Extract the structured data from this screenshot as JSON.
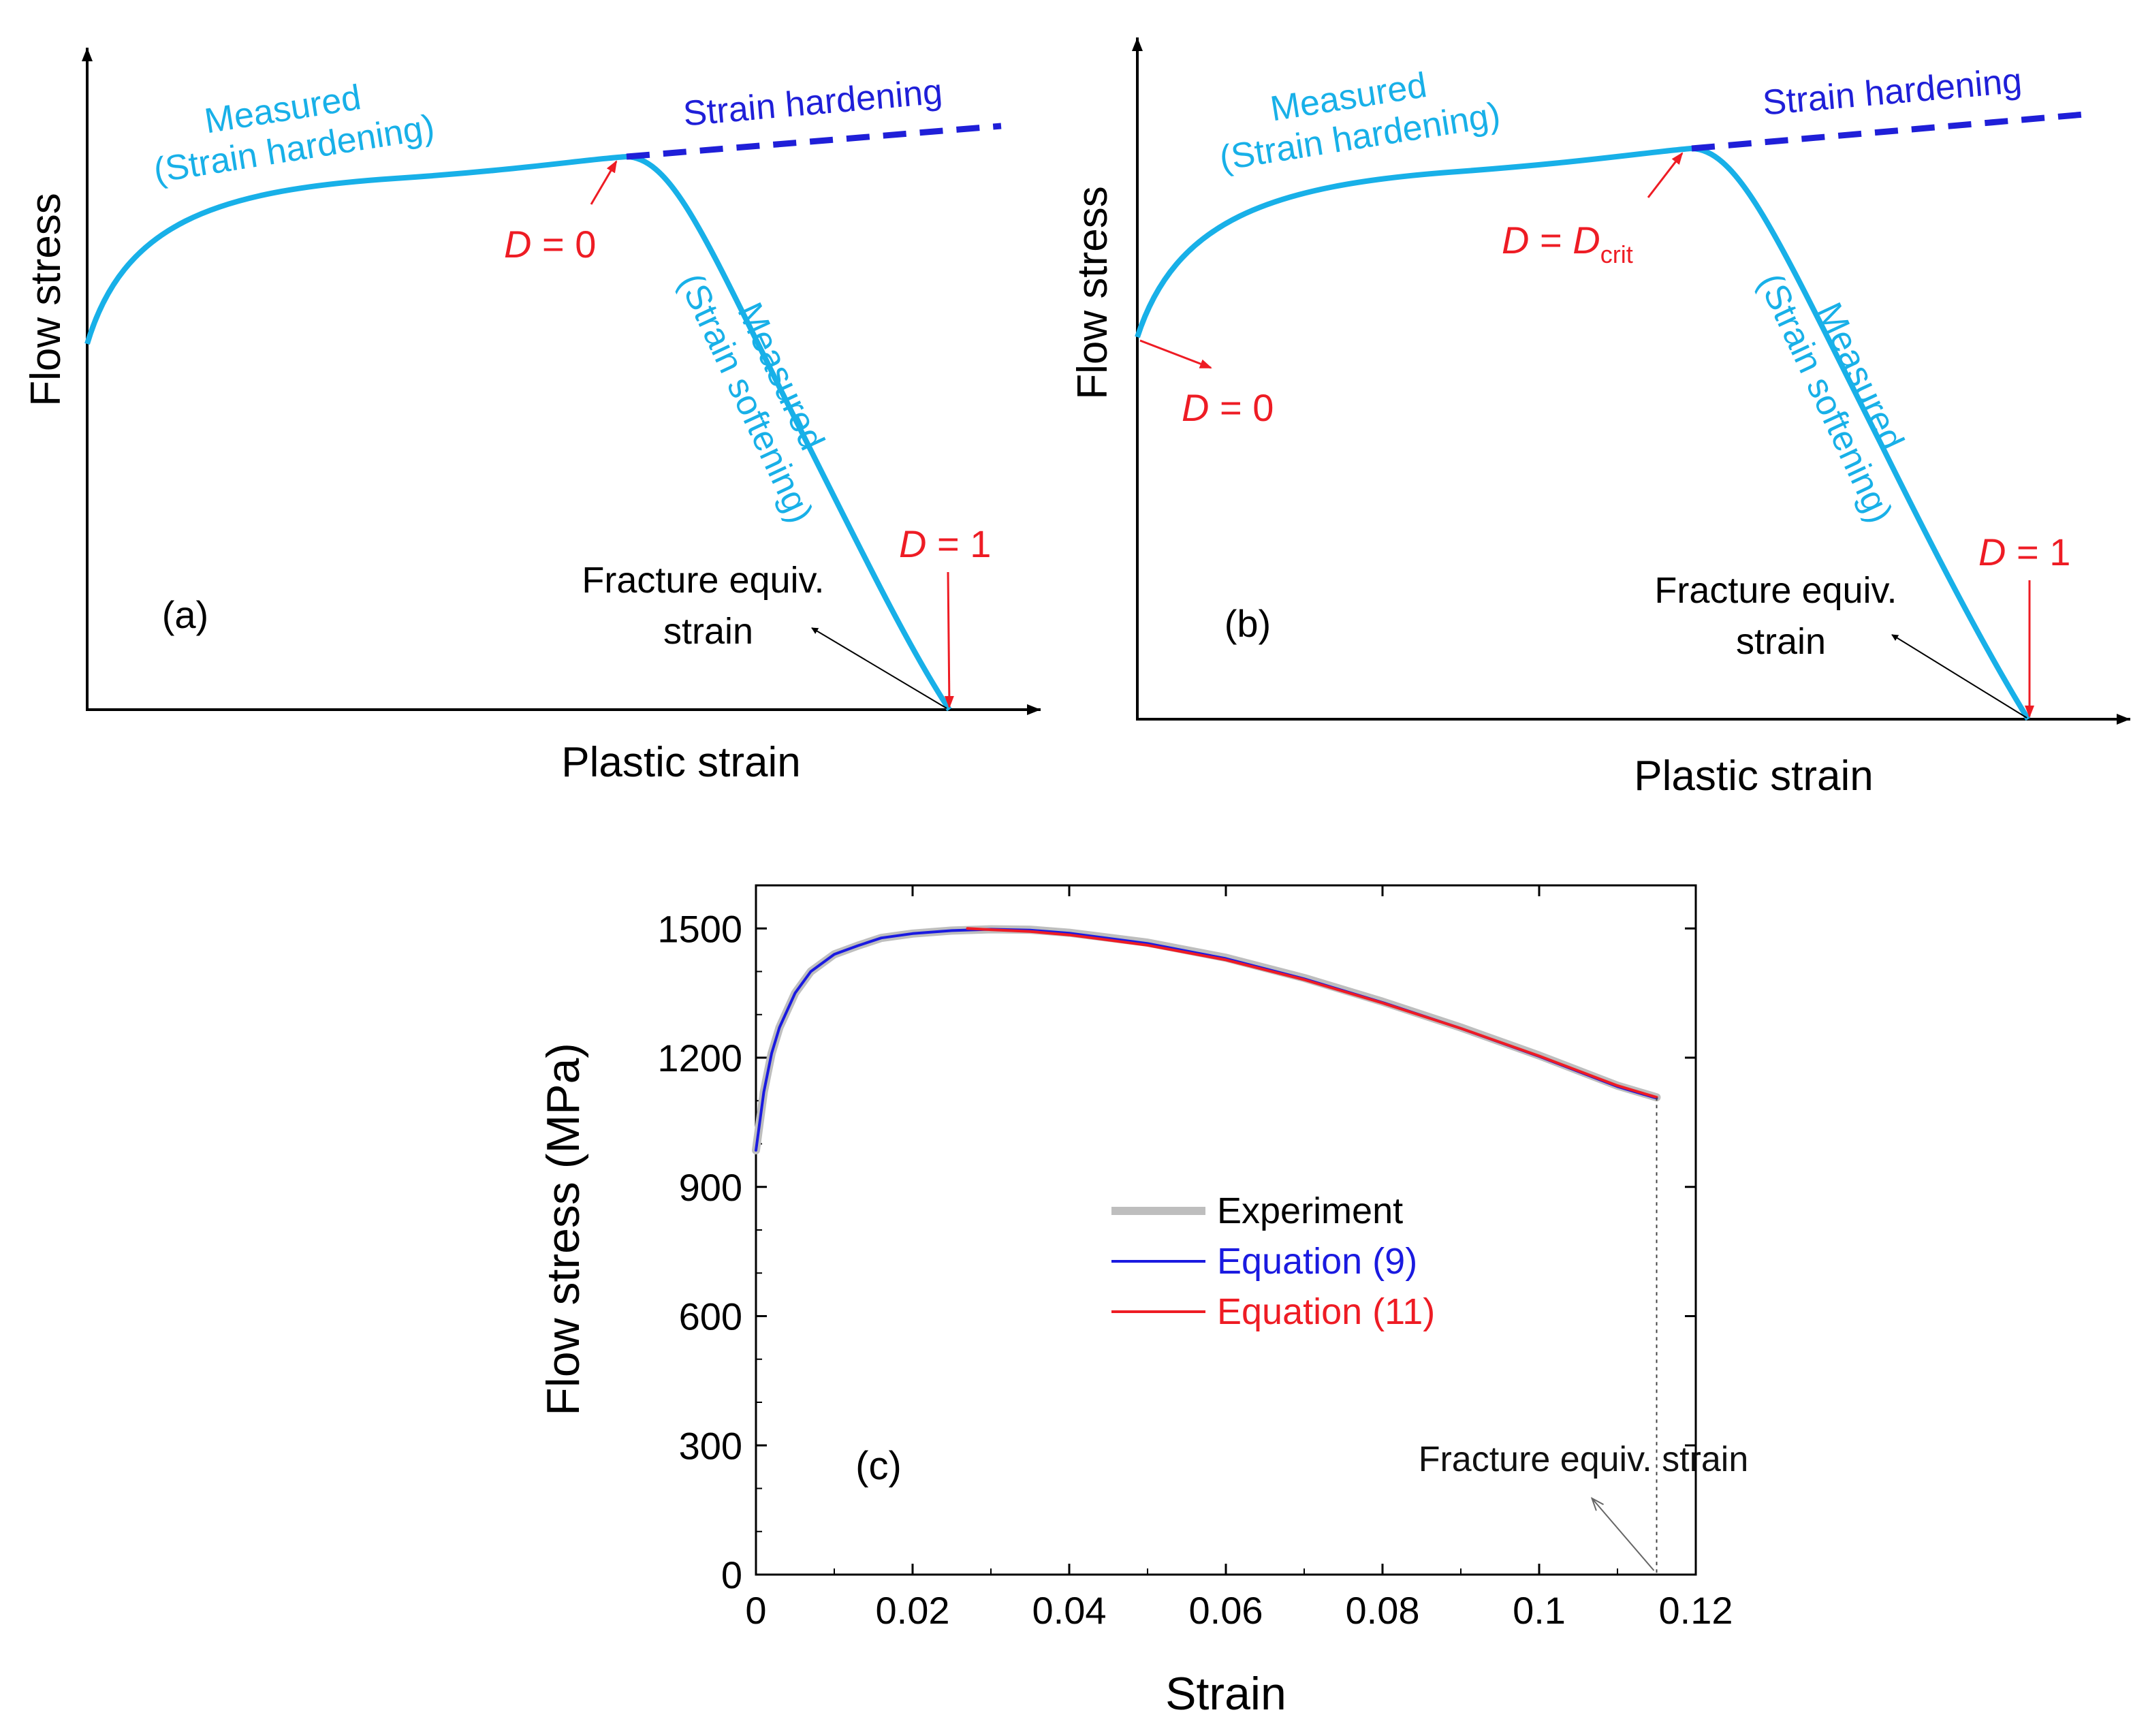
{
  "colors": {
    "measured": "#18B0E8",
    "dashed": "#1F1FD8",
    "damage": "#EE1C24",
    "experiment": "#BEBEBE",
    "eq9": "#1A1AE0",
    "eq11": "#EE1C24",
    "axis": "#000000"
  },
  "panel_a": {
    "label": "(a)",
    "ylabel": "Flow stress",
    "xlabel": "Plastic strain",
    "measured_hardening": [
      "Measured",
      "(Strain hardening)"
    ],
    "strain_hardening": "Strain hardening",
    "measured_softening": [
      "Measured",
      "(Strain softening)"
    ],
    "d0": {
      "var": "D",
      "text": " = 0"
    },
    "d1": {
      "var": "D",
      "text": " = 1"
    },
    "fracture": [
      "Fracture equiv.",
      "strain"
    ]
  },
  "panel_b": {
    "label": "(b)",
    "ylabel": "Flow stress",
    "xlabel": "Plastic strain",
    "measured_hardening": [
      "Measured",
      "(Strain hardening)"
    ],
    "strain_hardening": "Strain hardening",
    "measured_softening": [
      "Measured",
      "(Strain softening)"
    ],
    "d0": {
      "var": "D",
      "text": " = 0"
    },
    "dcrit": {
      "var": "D",
      "eq": " = ",
      "var2": "D",
      "sub": "crit"
    },
    "d1": {
      "var": "D",
      "text": " = 1"
    },
    "fracture": [
      "Fracture equiv.",
      "strain"
    ]
  },
  "chart_data": {
    "type": "line",
    "panel_label": "(c)",
    "xlabel": "Strain",
    "ylabel": "Flow stress (MPa)",
    "xlim": [
      0,
      0.12
    ],
    "ylim": [
      0,
      1600
    ],
    "xticks": [
      0,
      0.02,
      0.04,
      0.06,
      0.08,
      0.1,
      0.12
    ],
    "xtick_labels": [
      "0",
      "0.02",
      "0.04",
      "0.06",
      "0.08",
      "0.1",
      "0.12"
    ],
    "yticks": [
      0,
      300,
      600,
      900,
      1200,
      1500
    ],
    "ytick_labels": [
      "0",
      "300",
      "600",
      "900",
      "1200",
      "1500"
    ],
    "legend_placement": "center",
    "grid": false,
    "annotation": "Fracture equiv. strain",
    "fracture_strain": 0.115,
    "series": [
      {
        "name": "Experiment",
        "color": "#BEBEBE",
        "x": [
          0,
          0.001,
          0.002,
          0.003,
          0.005,
          0.007,
          0.01,
          0.013,
          0.016,
          0.02,
          0.025,
          0.03,
          0.035,
          0.04,
          0.05,
          0.06,
          0.07,
          0.08,
          0.09,
          0.1,
          0.11,
          0.115
        ],
        "y": [
          985,
          1120,
          1210,
          1270,
          1350,
          1400,
          1440,
          1460,
          1478,
          1488,
          1495,
          1498,
          1497,
          1490,
          1467,
          1432,
          1385,
          1330,
          1270,
          1205,
          1135,
          1108
        ]
      },
      {
        "name": "Equation (9)",
        "color": "#1A1AE0",
        "x": [
          0,
          0.001,
          0.002,
          0.003,
          0.005,
          0.007,
          0.01,
          0.013,
          0.016,
          0.02,
          0.025,
          0.03,
          0.035,
          0.04,
          0.05,
          0.06,
          0.07,
          0.08,
          0.09,
          0.1,
          0.11,
          0.115
        ],
        "y": [
          985,
          1120,
          1210,
          1270,
          1350,
          1400,
          1440,
          1460,
          1478,
          1488,
          1495,
          1498,
          1496,
          1489,
          1465,
          1430,
          1383,
          1328,
          1268,
          1203,
          1133,
          1106
        ]
      },
      {
        "name": "Equation (11)",
        "color": "#EE1C24",
        "x": [
          0.027,
          0.03,
          0.035,
          0.04,
          0.05,
          0.06,
          0.07,
          0.08,
          0.09,
          0.1,
          0.11,
          0.115
        ],
        "y": [
          1500,
          1497,
          1493,
          1485,
          1461,
          1427,
          1381,
          1327,
          1268,
          1204,
          1135,
          1108
        ]
      }
    ]
  }
}
